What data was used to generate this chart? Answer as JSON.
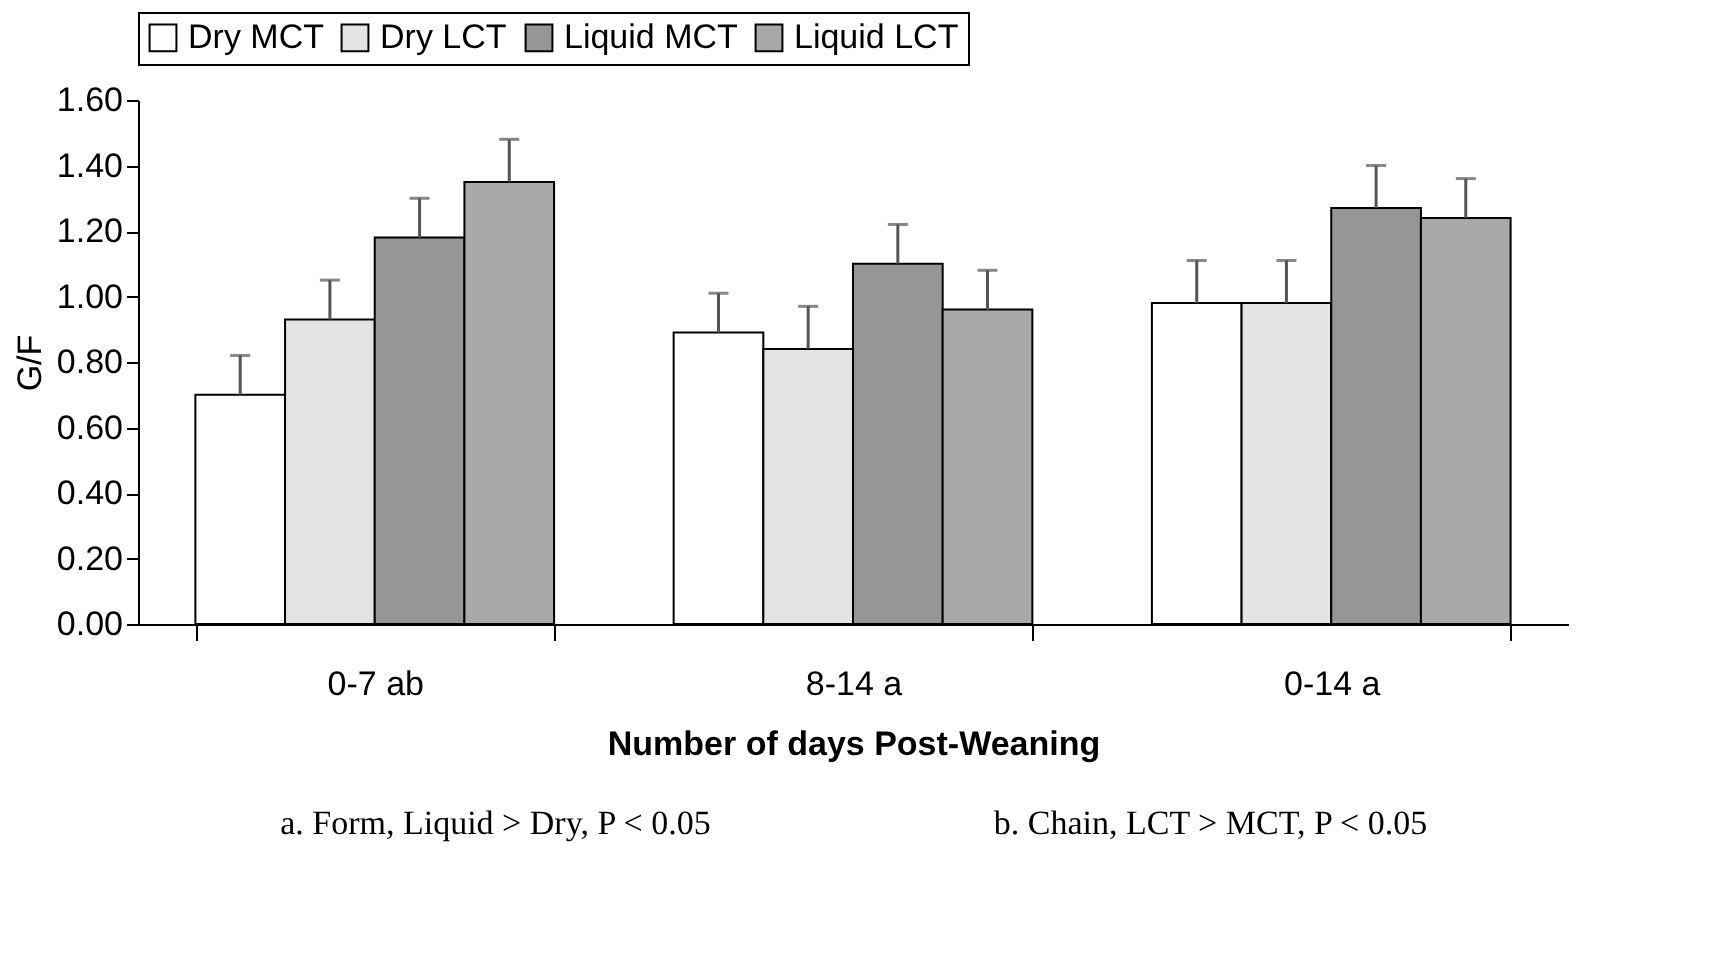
{
  "chart_data": {
    "type": "bar",
    "xlabel": "Number of days Post-Weaning",
    "ylabel": "G/F",
    "categories": [
      "0-7 ab",
      "8-14 a",
      "0-14 a"
    ],
    "series": [
      {
        "name": "Dry MCT",
        "color": "#ffffff",
        "values": [
          0.7,
          0.89,
          0.98
        ],
        "errors": [
          [
            0.7,
            0.82
          ],
          [
            0.89,
            1.01
          ],
          [
            0.98,
            1.11
          ]
        ]
      },
      {
        "name": "Dry LCT",
        "color": "#e4e4e4",
        "values": [
          0.93,
          0.84,
          0.98
        ],
        "errors": [
          [
            0.93,
            1.05
          ],
          [
            0.84,
            0.97
          ],
          [
            0.98,
            1.11
          ]
        ]
      },
      {
        "name": "Liquid MCT",
        "color": "#969696",
        "values": [
          1.18,
          1.1,
          1.27
        ],
        "errors": [
          [
            1.18,
            1.3
          ],
          [
            1.1,
            1.22
          ],
          [
            1.27,
            1.4
          ]
        ]
      },
      {
        "name": "Liquid LCT",
        "color": "#a8a8a8",
        "values": [
          1.35,
          0.96,
          1.24
        ],
        "errors": [
          [
            1.35,
            1.48
          ],
          [
            0.96,
            1.08
          ],
          [
            1.24,
            1.36
          ]
        ]
      }
    ],
    "ylim": [
      0,
      1.6
    ],
    "yticks": [
      {
        "value": 0,
        "label": "0.00"
      },
      {
        "value": 0.2,
        "label": "0.20"
      },
      {
        "value": 0.4,
        "label": "0.40"
      },
      {
        "value": 0.6,
        "label": "0.60"
      },
      {
        "value": 0.8,
        "label": "0.80"
      },
      {
        "value": 1.0,
        "label": "1.00"
      },
      {
        "value": 1.2,
        "label": "1.20"
      },
      {
        "value": 1.4,
        "label": "1.40"
      },
      {
        "value": 1.6,
        "label": "1.60"
      }
    ],
    "grid": false,
    "legend": "top",
    "annotations": [
      "a. Form, Liquid > Dry, P < 0.05",
      "b. Chain, LCT > MCT, P < 0.05"
    ]
  }
}
